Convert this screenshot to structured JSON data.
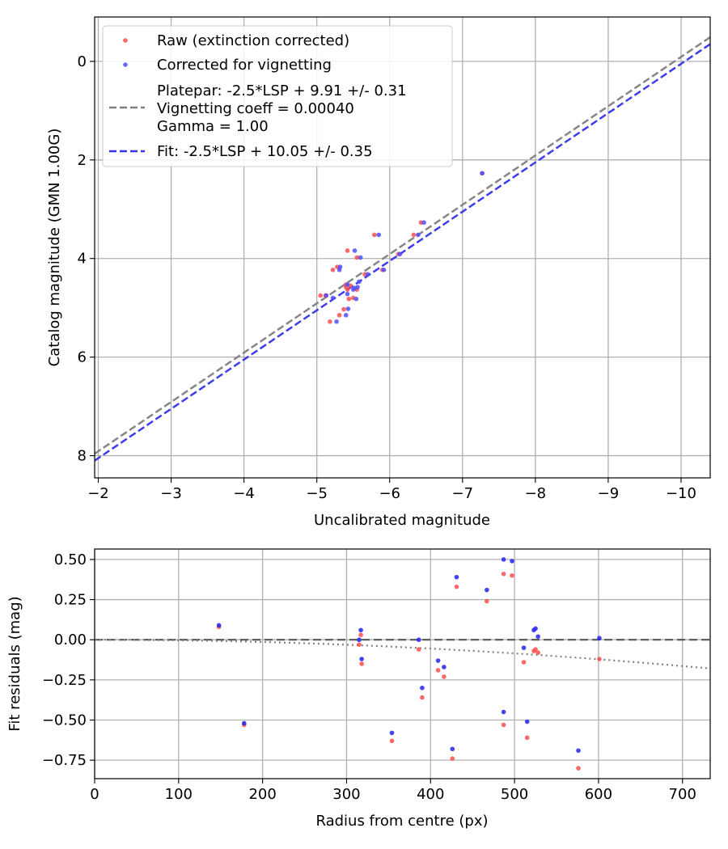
{
  "chart_data": [
    {
      "type": "scatter",
      "xlabel": "Uncalibrated magnitude",
      "ylabel": "Catalog magnitude (GMN 1.00G)",
      "xlim": [
        -1.95,
        -10.4
      ],
      "ylim": [
        8.45,
        -0.9
      ],
      "x_ticks": [
        -2,
        -3,
        -4,
        -5,
        -6,
        -7,
        -8,
        -9,
        -10
      ],
      "x_tick_labels": [
        "−2",
        "−3",
        "−4",
        "−5",
        "−6",
        "−7",
        "−8",
        "−9",
        "−10"
      ],
      "y_ticks": [
        0,
        2,
        4,
        6,
        8
      ],
      "y_tick_labels": [
        "0",
        "2",
        "4",
        "6",
        "8"
      ],
      "grid": true,
      "legend_position": "top-left",
      "legend": [
        {
          "label_lines": [
            "Raw (extinction corrected)"
          ],
          "kind": "dot",
          "color": "#ff4d4d"
        },
        {
          "label_lines": [
            "Corrected for vignetting"
          ],
          "kind": "dot",
          "color": "#4d4dff"
        },
        {
          "label_lines": [
            "Platepar: -2.5*LSP + 9.91 +/- 0.31",
            "Vignetting coeff = 0.00040",
            "Gamma = 1.00"
          ],
          "kind": "dash",
          "color": "#808080"
        },
        {
          "label_lines": [
            "Fit: -2.5*LSP + 10.05 +/- 0.35"
          ],
          "kind": "dash",
          "color": "#3333ee"
        }
      ],
      "lines": [
        {
          "name": "Platepar",
          "slope": 1,
          "intercept": 9.91,
          "color": "#808080",
          "style": "dashed"
        },
        {
          "name": "Fit",
          "slope": 1,
          "intercept": 10.05,
          "color": "#3333ee",
          "style": "dashed"
        }
      ],
      "series": [
        {
          "name": "Raw (extinction corrected)",
          "color": "#ff4d4d",
          "points": [
            [
              -7.27,
              2.27
            ],
            [
              -6.43,
              3.27
            ],
            [
              -6.33,
              3.52
            ],
            [
              -5.79,
              3.52
            ],
            [
              -6.12,
              3.91
            ],
            [
              -5.55,
              3.98
            ],
            [
              -5.42,
              3.84
            ],
            [
              -5.9,
              4.23
            ],
            [
              -5.66,
              4.32
            ],
            [
              -5.28,
              4.17
            ],
            [
              -5.22,
              4.23
            ],
            [
              -5.4,
              4.53
            ],
            [
              -5.4,
              4.58
            ],
            [
              -5.46,
              4.55
            ],
            [
              -5.42,
              4.63
            ],
            [
              -5.55,
              4.63
            ],
            [
              -5.05,
              4.75
            ],
            [
              -5.12,
              4.75
            ],
            [
              -5.44,
              4.82
            ],
            [
              -5.5,
              4.8
            ],
            [
              -5.37,
              5.03
            ],
            [
              -5.31,
              5.15
            ],
            [
              -5.18,
              5.28
            ]
          ]
        },
        {
          "name": "Corrected for vignetting",
          "color": "#4d4dff",
          "points": [
            [
              -7.27,
              2.27
            ],
            [
              -6.47,
              3.27
            ],
            [
              -6.39,
              3.52
            ],
            [
              -5.85,
              3.52
            ],
            [
              -6.14,
              3.91
            ],
            [
              -5.6,
              3.98
            ],
            [
              -5.52,
              3.84
            ],
            [
              -5.92,
              4.23
            ],
            [
              -5.7,
              4.32
            ],
            [
              -5.32,
              4.17
            ],
            [
              -5.31,
              4.23
            ],
            [
              -5.42,
              4.53
            ],
            [
              -5.56,
              4.58
            ],
            [
              -5.58,
              4.47
            ],
            [
              -5.52,
              4.6
            ],
            [
              -5.5,
              4.63
            ],
            [
              -5.42,
              4.72
            ],
            [
              -5.13,
              4.75
            ],
            [
              -5.22,
              4.8
            ],
            [
              -5.54,
              4.82
            ],
            [
              -5.43,
              5.02
            ],
            [
              -5.4,
              5.15
            ],
            [
              -5.27,
              5.28
            ]
          ]
        }
      ]
    },
    {
      "type": "scatter",
      "xlabel": "Radius from centre (px)",
      "ylabel": "Fit residuals (mag)",
      "xlim": [
        0,
        733
      ],
      "ylim": [
        -0.865,
        0.565
      ],
      "x_ticks": [
        0,
        100,
        200,
        300,
        400,
        500,
        600,
        700
      ],
      "x_tick_labels": [
        "0",
        "100",
        "200",
        "300",
        "400",
        "500",
        "600",
        "700"
      ],
      "y_ticks": [
        0.5,
        0.25,
        0,
        -0.25,
        -0.5,
        -0.75
      ],
      "y_tick_labels": [
        "0.50",
        "0.25",
        "0.00",
        "−0.25",
        "−0.50",
        "−0.75"
      ],
      "grid": true,
      "zero_line": {
        "y": 0,
        "color": "#555555",
        "style": "dashed"
      },
      "vignetting_curve": {
        "coeff": 0.0004,
        "gamma": 1.0,
        "color": "#808080",
        "style": "dotted"
      },
      "series": [
        {
          "name": "Raw (extinction corrected)",
          "color": "#ff4d4d",
          "points": [
            [
              148,
              0.08
            ],
            [
              178,
              -0.53
            ],
            [
              315,
              -0.03
            ],
            [
              317,
              0.03
            ],
            [
              318,
              -0.15
            ],
            [
              354,
              -0.63
            ],
            [
              386,
              -0.06
            ],
            [
              390,
              -0.36
            ],
            [
              409,
              -0.19
            ],
            [
              416,
              -0.23
            ],
            [
              426,
              -0.74
            ],
            [
              431,
              0.33
            ],
            [
              467,
              0.24
            ],
            [
              487,
              0.41
            ],
            [
              487,
              -0.53
            ],
            [
              497,
              0.4
            ],
            [
              511,
              -0.14
            ],
            [
              515,
              -0.61
            ],
            [
              523,
              -0.07
            ],
            [
              525,
              -0.06
            ],
            [
              528,
              -0.08
            ],
            [
              576,
              -0.8
            ],
            [
              601,
              -0.12
            ]
          ]
        },
        {
          "name": "Corrected for vignetting",
          "color": "#2222ee",
          "points": [
            [
              148,
              0.09
            ],
            [
              178,
              -0.52
            ],
            [
              315,
              0.0
            ],
            [
              317,
              0.06
            ],
            [
              318,
              -0.12
            ],
            [
              354,
              -0.58
            ],
            [
              386,
              0.0
            ],
            [
              390,
              -0.3
            ],
            [
              409,
              -0.13
            ],
            [
              416,
              -0.17
            ],
            [
              426,
              -0.68
            ],
            [
              431,
              0.39
            ],
            [
              467,
              0.31
            ],
            [
              487,
              0.5
            ],
            [
              487,
              -0.45
            ],
            [
              497,
              0.49
            ],
            [
              511,
              -0.05
            ],
            [
              515,
              -0.51
            ],
            [
              523,
              0.06
            ],
            [
              525,
              0.07
            ],
            [
              528,
              0.02
            ],
            [
              576,
              -0.69
            ],
            [
              601,
              0.01
            ]
          ]
        }
      ]
    }
  ]
}
